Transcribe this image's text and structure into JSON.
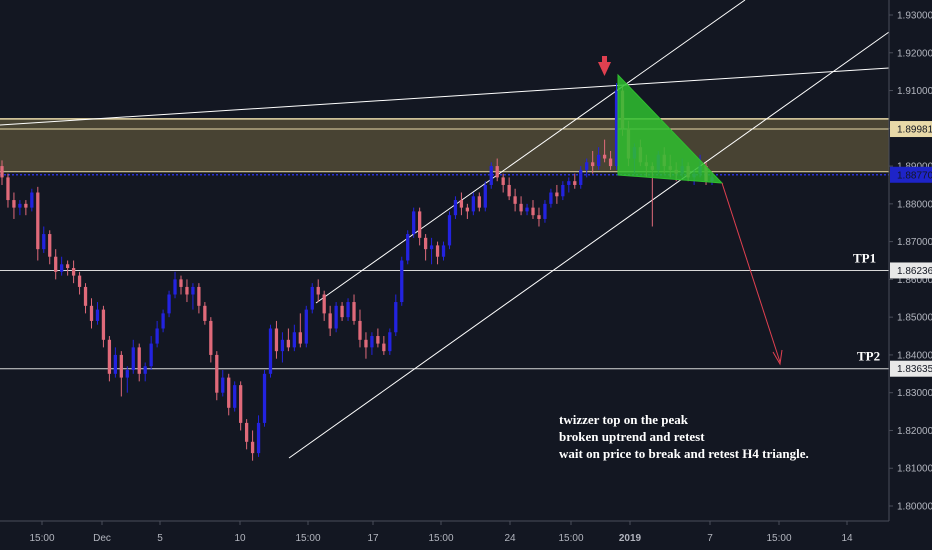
{
  "chart_data": {
    "type": "candlestick",
    "symbol_note_lines": [
      "twizzer top on the peak",
      "broken uptrend and retest",
      "wait on price to break and retest H4 triangle."
    ],
    "ylim": [
      1.795,
      1.935
    ],
    "y_ticks": [
      "1.93000",
      "1.92000",
      "1.91000",
      "1.90000",
      "1.89000",
      "1.88000",
      "1.87000",
      "1.86000",
      "1.85000",
      "1.84000",
      "1.83000",
      "1.82000",
      "1.81000",
      "1.80000"
    ],
    "x_ticks": [
      "15:00",
      "Dec",
      "5",
      "10",
      "15:00",
      "17",
      "15:00",
      "24",
      "15:00",
      "2019",
      "7",
      "15:00",
      "14"
    ],
    "price_tags": [
      {
        "label": "1.89981",
        "value": 1.89981,
        "color": "#e8d9a8"
      },
      {
        "label": "1.88770",
        "value": 1.8877,
        "color": "#1e24c8",
        "text_color": "#ffffff"
      },
      {
        "label": "1.86236",
        "value": 1.86236,
        "color": "#e8e8e8"
      },
      {
        "label": "1.83635",
        "value": 1.83635,
        "color": "#e8e8e8"
      }
    ],
    "targets": [
      {
        "label": "TP1",
        "value": 1.86236
      },
      {
        "label": "TP2",
        "value": 1.83635
      }
    ],
    "zone": {
      "top": 1.9025,
      "bottom": 1.8885
    },
    "candles": [
      {
        "o": 1.89,
        "h": 1.8915,
        "l": 1.885,
        "c": 1.887
      },
      {
        "o": 1.887,
        "h": 1.888,
        "l": 1.879,
        "c": 1.881
      },
      {
        "o": 1.881,
        "h": 1.883,
        "l": 1.876,
        "c": 1.879
      },
      {
        "o": 1.879,
        "h": 1.881,
        "l": 1.877,
        "c": 1.88
      },
      {
        "o": 1.88,
        "h": 1.881,
        "l": 1.877,
        "c": 1.879
      },
      {
        "o": 1.879,
        "h": 1.884,
        "l": 1.878,
        "c": 1.883
      },
      {
        "o": 1.883,
        "h": 1.8845,
        "l": 1.865,
        "c": 1.868
      },
      {
        "o": 1.868,
        "h": 1.874,
        "l": 1.867,
        "c": 1.872
      },
      {
        "o": 1.872,
        "h": 1.873,
        "l": 1.864,
        "c": 1.866
      },
      {
        "o": 1.866,
        "h": 1.868,
        "l": 1.86,
        "c": 1.862
      },
      {
        "o": 1.862,
        "h": 1.866,
        "l": 1.861,
        "c": 1.864
      },
      {
        "o": 1.864,
        "h": 1.865,
        "l": 1.861,
        "c": 1.863
      },
      {
        "o": 1.863,
        "h": 1.865,
        "l": 1.859,
        "c": 1.861
      },
      {
        "o": 1.861,
        "h": 1.862,
        "l": 1.856,
        "c": 1.858
      },
      {
        "o": 1.858,
        "h": 1.859,
        "l": 1.851,
        "c": 1.853
      },
      {
        "o": 1.853,
        "h": 1.855,
        "l": 1.847,
        "c": 1.849
      },
      {
        "o": 1.849,
        "h": 1.854,
        "l": 1.848,
        "c": 1.852
      },
      {
        "o": 1.852,
        "h": 1.853,
        "l": 1.842,
        "c": 1.844
      },
      {
        "o": 1.844,
        "h": 1.845,
        "l": 1.833,
        "c": 1.835
      },
      {
        "o": 1.835,
        "h": 1.842,
        "l": 1.834,
        "c": 1.84
      },
      {
        "o": 1.84,
        "h": 1.841,
        "l": 1.829,
        "c": 1.834
      },
      {
        "o": 1.834,
        "h": 1.837,
        "l": 1.83,
        "c": 1.836
      },
      {
        "o": 1.836,
        "h": 1.844,
        "l": 1.835,
        "c": 1.842
      },
      {
        "o": 1.842,
        "h": 1.843,
        "l": 1.833,
        "c": 1.835
      },
      {
        "o": 1.835,
        "h": 1.838,
        "l": 1.833,
        "c": 1.837
      },
      {
        "o": 1.837,
        "h": 1.845,
        "l": 1.836,
        "c": 1.843
      },
      {
        "o": 1.843,
        "h": 1.849,
        "l": 1.842,
        "c": 1.847
      },
      {
        "o": 1.847,
        "h": 1.852,
        "l": 1.846,
        "c": 1.851
      },
      {
        "o": 1.851,
        "h": 1.857,
        "l": 1.85,
        "c": 1.856
      },
      {
        "o": 1.856,
        "h": 1.862,
        "l": 1.855,
        "c": 1.86
      },
      {
        "o": 1.86,
        "h": 1.861,
        "l": 1.856,
        "c": 1.858
      },
      {
        "o": 1.858,
        "h": 1.86,
        "l": 1.854,
        "c": 1.856
      },
      {
        "o": 1.856,
        "h": 1.859,
        "l": 1.852,
        "c": 1.858
      },
      {
        "o": 1.858,
        "h": 1.859,
        "l": 1.851,
        "c": 1.853
      },
      {
        "o": 1.853,
        "h": 1.854,
        "l": 1.848,
        "c": 1.849
      },
      {
        "o": 1.849,
        "h": 1.85,
        "l": 1.838,
        "c": 1.84
      },
      {
        "o": 1.84,
        "h": 1.841,
        "l": 1.828,
        "c": 1.83
      },
      {
        "o": 1.83,
        "h": 1.836,
        "l": 1.829,
        "c": 1.834
      },
      {
        "o": 1.834,
        "h": 1.835,
        "l": 1.824,
        "c": 1.826
      },
      {
        "o": 1.826,
        "h": 1.833,
        "l": 1.825,
        "c": 1.832
      },
      {
        "o": 1.832,
        "h": 1.833,
        "l": 1.82,
        "c": 1.822
      },
      {
        "o": 1.822,
        "h": 1.823,
        "l": 1.815,
        "c": 1.817
      },
      {
        "o": 1.817,
        "h": 1.82,
        "l": 1.812,
        "c": 1.814
      },
      {
        "o": 1.814,
        "h": 1.824,
        "l": 1.813,
        "c": 1.822
      },
      {
        "o": 1.822,
        "h": 1.836,
        "l": 1.821,
        "c": 1.835
      },
      {
        "o": 1.835,
        "h": 1.848,
        "l": 1.834,
        "c": 1.847
      },
      {
        "o": 1.847,
        "h": 1.849,
        "l": 1.839,
        "c": 1.841
      },
      {
        "o": 1.841,
        "h": 1.846,
        "l": 1.838,
        "c": 1.844
      },
      {
        "o": 1.844,
        "h": 1.847,
        "l": 1.841,
        "c": 1.842
      },
      {
        "o": 1.842,
        "h": 1.848,
        "l": 1.841,
        "c": 1.846
      },
      {
        "o": 1.846,
        "h": 1.851,
        "l": 1.842,
        "c": 1.843
      },
      {
        "o": 1.843,
        "h": 1.853,
        "l": 1.842,
        "c": 1.852
      },
      {
        "o": 1.852,
        "h": 1.859,
        "l": 1.851,
        "c": 1.858
      },
      {
        "o": 1.858,
        "h": 1.86,
        "l": 1.854,
        "c": 1.856
      },
      {
        "o": 1.856,
        "h": 1.857,
        "l": 1.849,
        "c": 1.851
      },
      {
        "o": 1.851,
        "h": 1.853,
        "l": 1.845,
        "c": 1.847
      },
      {
        "o": 1.847,
        "h": 1.854,
        "l": 1.846,
        "c": 1.853
      },
      {
        "o": 1.853,
        "h": 1.854,
        "l": 1.849,
        "c": 1.85
      },
      {
        "o": 1.85,
        "h": 1.855,
        "l": 1.849,
        "c": 1.854
      },
      {
        "o": 1.854,
        "h": 1.856,
        "l": 1.848,
        "c": 1.849
      },
      {
        "o": 1.849,
        "h": 1.852,
        "l": 1.842,
        "c": 1.844
      },
      {
        "o": 1.844,
        "h": 1.846,
        "l": 1.839,
        "c": 1.842
      },
      {
        "o": 1.842,
        "h": 1.846,
        "l": 1.84,
        "c": 1.845
      },
      {
        "o": 1.845,
        "h": 1.847,
        "l": 1.842,
        "c": 1.843
      },
      {
        "o": 1.843,
        "h": 1.845,
        "l": 1.84,
        "c": 1.841
      },
      {
        "o": 1.841,
        "h": 1.847,
        "l": 1.84,
        "c": 1.846
      },
      {
        "o": 1.846,
        "h": 1.856,
        "l": 1.845,
        "c": 1.854
      },
      {
        "o": 1.854,
        "h": 1.866,
        "l": 1.853,
        "c": 1.865
      },
      {
        "o": 1.865,
        "h": 1.873,
        "l": 1.864,
        "c": 1.872
      },
      {
        "o": 1.872,
        "h": 1.879,
        "l": 1.871,
        "c": 1.878
      },
      {
        "o": 1.878,
        "h": 1.879,
        "l": 1.869,
        "c": 1.871
      },
      {
        "o": 1.871,
        "h": 1.872,
        "l": 1.865,
        "c": 1.868
      },
      {
        "o": 1.868,
        "h": 1.871,
        "l": 1.864,
        "c": 1.869
      },
      {
        "o": 1.869,
        "h": 1.87,
        "l": 1.864,
        "c": 1.866
      },
      {
        "o": 1.866,
        "h": 1.87,
        "l": 1.865,
        "c": 1.869
      },
      {
        "o": 1.869,
        "h": 1.878,
        "l": 1.868,
        "c": 1.877
      },
      {
        "o": 1.877,
        "h": 1.882,
        "l": 1.876,
        "c": 1.881
      },
      {
        "o": 1.881,
        "h": 1.883,
        "l": 1.877,
        "c": 1.879
      },
      {
        "o": 1.879,
        "h": 1.88,
        "l": 1.876,
        "c": 1.878
      },
      {
        "o": 1.878,
        "h": 1.883,
        "l": 1.877,
        "c": 1.882
      },
      {
        "o": 1.882,
        "h": 1.883,
        "l": 1.878,
        "c": 1.879
      },
      {
        "o": 1.879,
        "h": 1.886,
        "l": 1.878,
        "c": 1.885
      },
      {
        "o": 1.885,
        "h": 1.891,
        "l": 1.884,
        "c": 1.89
      },
      {
        "o": 1.89,
        "h": 1.892,
        "l": 1.886,
        "c": 1.887
      },
      {
        "o": 1.887,
        "h": 1.888,
        "l": 1.883,
        "c": 1.885
      },
      {
        "o": 1.885,
        "h": 1.887,
        "l": 1.881,
        "c": 1.882
      },
      {
        "o": 1.882,
        "h": 1.884,
        "l": 1.878,
        "c": 1.88
      },
      {
        "o": 1.88,
        "h": 1.882,
        "l": 1.877,
        "c": 1.878
      },
      {
        "o": 1.878,
        "h": 1.88,
        "l": 1.877,
        "c": 1.879
      },
      {
        "o": 1.879,
        "h": 1.881,
        "l": 1.876,
        "c": 1.877
      },
      {
        "o": 1.877,
        "h": 1.879,
        "l": 1.874,
        "c": 1.876
      },
      {
        "o": 1.876,
        "h": 1.881,
        "l": 1.875,
        "c": 1.88
      },
      {
        "o": 1.88,
        "h": 1.884,
        "l": 1.879,
        "c": 1.883
      },
      {
        "o": 1.883,
        "h": 1.885,
        "l": 1.88,
        "c": 1.882
      },
      {
        "o": 1.882,
        "h": 1.886,
        "l": 1.881,
        "c": 1.885
      },
      {
        "o": 1.885,
        "h": 1.887,
        "l": 1.883,
        "c": 1.886
      },
      {
        "o": 1.886,
        "h": 1.888,
        "l": 1.884,
        "c": 1.885
      },
      {
        "o": 1.885,
        "h": 1.89,
        "l": 1.884,
        "c": 1.889
      },
      {
        "o": 1.889,
        "h": 1.892,
        "l": 1.887,
        "c": 1.891
      },
      {
        "o": 1.891,
        "h": 1.894,
        "l": 1.888,
        "c": 1.89
      },
      {
        "o": 1.89,
        "h": 1.895,
        "l": 1.889,
        "c": 1.893
      },
      {
        "o": 1.893,
        "h": 1.897,
        "l": 1.891,
        "c": 1.892
      },
      {
        "o": 1.892,
        "h": 1.894,
        "l": 1.889,
        "c": 1.89
      },
      {
        "o": 1.89,
        "h": 1.912,
        "l": 1.889,
        "c": 1.91
      },
      {
        "o": 1.91,
        "h": 1.911,
        "l": 1.898,
        "c": 1.9
      },
      {
        "o": 1.9,
        "h": 1.902,
        "l": 1.89,
        "c": 1.892
      },
      {
        "o": 1.892,
        "h": 1.896,
        "l": 1.888,
        "c": 1.895
      },
      {
        "o": 1.895,
        "h": 1.897,
        "l": 1.89,
        "c": 1.891
      },
      {
        "o": 1.891,
        "h": 1.893,
        "l": 1.887,
        "c": 1.89
      },
      {
        "o": 1.89,
        "h": 1.891,
        "l": 1.874,
        "c": 1.889
      },
      {
        "o": 1.889,
        "h": 1.894,
        "l": 1.888,
        "c": 1.893
      },
      {
        "o": 1.893,
        "h": 1.895,
        "l": 1.888,
        "c": 1.89
      },
      {
        "o": 1.89,
        "h": 1.893,
        "l": 1.887,
        "c": 1.889
      },
      {
        "o": 1.889,
        "h": 1.891,
        "l": 1.886,
        "c": 1.888
      },
      {
        "o": 1.888,
        "h": 1.892,
        "l": 1.887,
        "c": 1.89
      },
      {
        "o": 1.89,
        "h": 1.891,
        "l": 1.886,
        "c": 1.887
      },
      {
        "o": 1.887,
        "h": 1.889,
        "l": 1.885,
        "c": 1.888
      },
      {
        "o": 1.888,
        "h": 1.893,
        "l": 1.887,
        "c": 1.89
      },
      {
        "o": 1.89,
        "h": 1.891,
        "l": 1.885,
        "c": 1.886
      },
      {
        "o": 1.886,
        "h": 1.888,
        "l": 1.885,
        "c": 1.887
      }
    ]
  }
}
